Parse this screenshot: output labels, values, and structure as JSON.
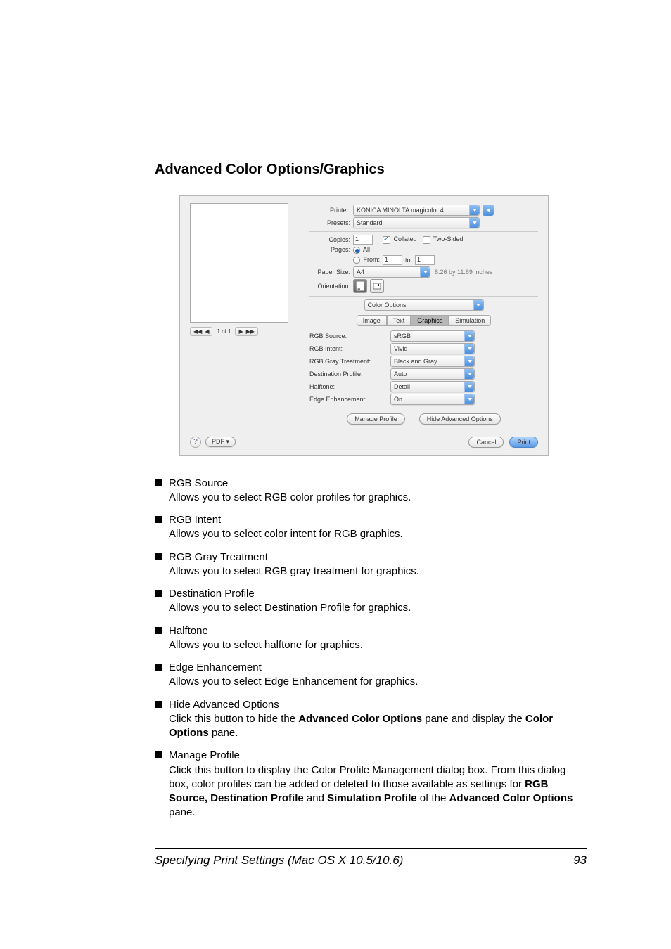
{
  "heading": "Advanced Color Options/Graphics",
  "dialog": {
    "printer_label": "Printer:",
    "printer_value": "KONICA MINOLTA magicolor 4...",
    "presets_label": "Presets:",
    "presets_value": "Standard",
    "copies_label": "Copies:",
    "copies_value": "1",
    "collated_label": "Collated",
    "twosided_label": "Two-Sided",
    "pages_label": "Pages:",
    "pages_all": "All",
    "pages_from": "From:",
    "pages_from_value": "1",
    "pages_to": "to:",
    "pages_to_value": "1",
    "papersize_label": "Paper Size:",
    "papersize_value": "A4",
    "papersize_dims": "8.26 by 11.69 inches",
    "orientation_label": "Orientation:",
    "section_select": "Color Options",
    "tabs": {
      "image": "Image",
      "text": "Text",
      "graphics": "Graphics",
      "simulation": "Simulation"
    },
    "options": {
      "rgb_source": {
        "label": "RGB Source:",
        "value": "sRGB"
      },
      "rgb_intent": {
        "label": "RGB Intent:",
        "value": "Vivid"
      },
      "rgb_gray": {
        "label": "RGB Gray Treatment:",
        "value": "Black and Gray"
      },
      "dest_profile": {
        "label": "Destination Profile:",
        "value": "Auto"
      },
      "halftone": {
        "label": "Halftone:",
        "value": "Detail"
      },
      "edge": {
        "label": "Edge Enhancement:",
        "value": "On"
      }
    },
    "manage_profile": "Manage Profile",
    "hide_adv": "Hide Advanced Options",
    "nav_page": "1 of 1",
    "pdf_btn": "PDF ▾",
    "cancel": "Cancel",
    "print": "Print"
  },
  "bullets": [
    {
      "title": "RGB Source",
      "body": "Allows you to select RGB color profiles for graphics."
    },
    {
      "title": "RGB Intent",
      "body": "Allows you to select color intent for RGB graphics."
    },
    {
      "title": "RGB Gray Treatment",
      "body": "Allows you to select RGB gray treatment for graphics."
    },
    {
      "title": "Destination Profile",
      "body": "Allows you to select Destination Profile for graphics."
    },
    {
      "title": "Halftone",
      "body": "Allows you to select halftone for graphics."
    },
    {
      "title": "Edge Enhancement",
      "body": "Allows you to select Edge Enhancement for graphics."
    },
    {
      "title": "Hide Advanced Options",
      "body_html": "Click this button to hide the <b>Advanced Color Options</b> pane and display the <b>Color Options</b> pane."
    },
    {
      "title": "Manage Profile",
      "body_html": "Click this button to display the Color Profile Management dialog box. From this dialog box, color profiles can be added or deleted to those available as settings for <b>RGB Source, Destination Profile</b> and <b>Simulation Profile</b> of the <b>Advanced Color Options</b> pane."
    }
  ],
  "footer": {
    "text": "Specifying Print Settings (Mac OS X 10.5/10.6)",
    "page": "93"
  }
}
